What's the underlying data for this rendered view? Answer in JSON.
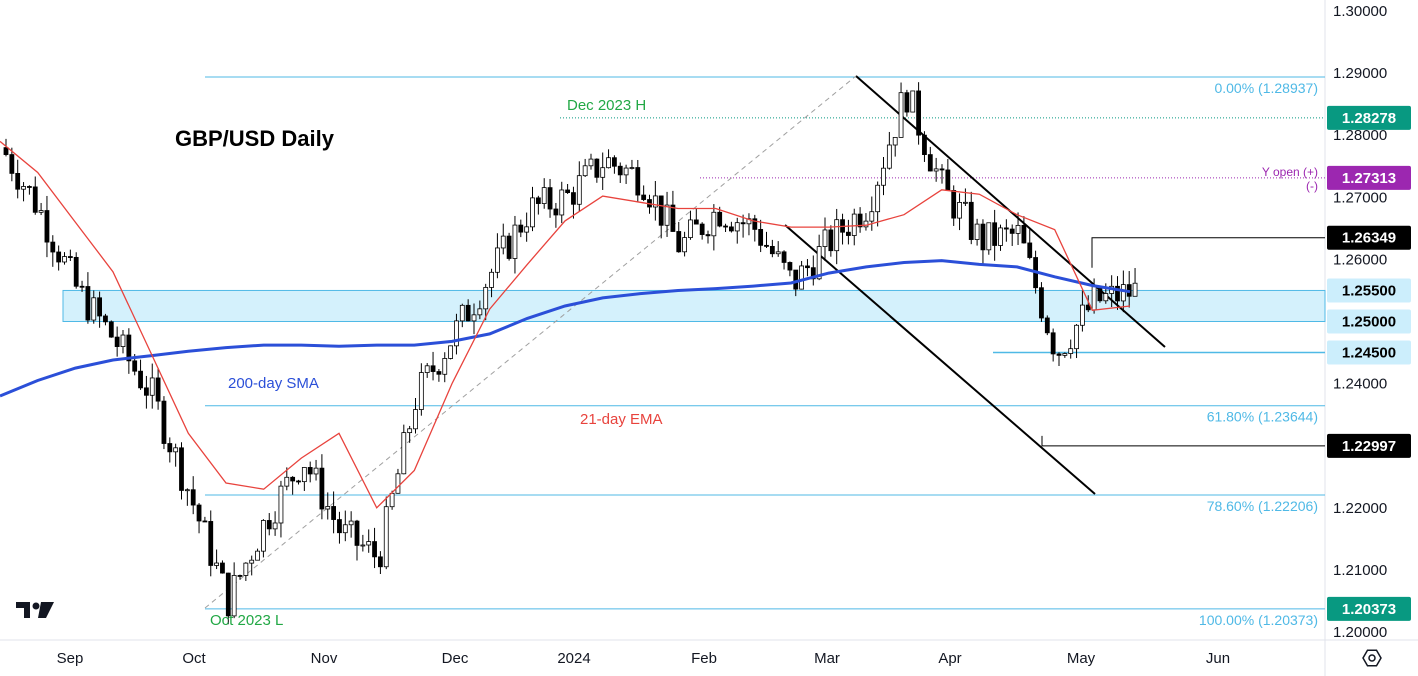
{
  "chart_data": {
    "type": "candlestick",
    "title": "GBP/USD Daily",
    "ylim": [
      1.2,
      1.3
    ],
    "y_ticks": [
      "1.30000",
      "1.29000",
      "1.28000",
      "1.27000",
      "1.26000",
      "1.24000",
      "1.22000",
      "1.21000",
      "1.20000"
    ],
    "x_ticks": [
      "Sep",
      "Oct",
      "Nov",
      "Dec",
      "2024",
      "Feb",
      "Mar",
      "Apr",
      "May",
      "Jun"
    ],
    "price_tags": [
      {
        "label": "1.28278",
        "value": 1.28278,
        "bg": "#089981",
        "fg": "#ffffff"
      },
      {
        "label": "1.27313",
        "value": 1.27313,
        "bg": "#9c27b0",
        "fg": "#ffffff"
      },
      {
        "label": "1.26349",
        "value": 1.26349,
        "bg": "#000000",
        "fg": "#ffffff"
      },
      {
        "label": "1.25500",
        "value": 1.255,
        "bg": "#cceefc",
        "fg": "#000000"
      },
      {
        "label": "1.25000",
        "value": 1.25,
        "bg": "#cceefc",
        "fg": "#000000"
      },
      {
        "label": "1.24500",
        "value": 1.245,
        "bg": "#cceefc",
        "fg": "#000000"
      },
      {
        "label": "1.22997",
        "value": 1.22997,
        "bg": "#000000",
        "fg": "#ffffff"
      },
      {
        "label": "1.20373",
        "value": 1.20373,
        "bg": "#089981",
        "fg": "#ffffff"
      }
    ],
    "fib_levels": [
      {
        "label": "0.00% (1.28937)",
        "value": 1.28937
      },
      {
        "label": "61.80% (1.23644)",
        "value": 1.23644
      },
      {
        "label": "78.60% (1.22206)",
        "value": 1.22206
      },
      {
        "label": "100.00% (1.20373)",
        "value": 1.20373
      }
    ],
    "zone": {
      "low": 1.25,
      "high": 1.255
    },
    "annotations": {
      "sma_label": "200-day SMA",
      "ema_label": "21-day EMA",
      "high_label": "Dec 2023 H",
      "low_label": "Oct 2023 L",
      "yopen_plus": "Y open (+)",
      "yopen_minus": "(-)"
    },
    "series_sma": [
      1.238,
      1.2405,
      1.2425,
      1.2438,
      1.2445,
      1.2452,
      1.2458,
      1.2462,
      1.2462,
      1.246,
      1.2462,
      1.2462,
      1.2468,
      1.248,
      1.2505,
      1.2525,
      1.2538,
      1.2545,
      1.255,
      1.2553,
      1.2557,
      1.2562,
      1.2578,
      1.2588,
      1.2595,
      1.2598,
      1.2592,
      1.2588,
      1.2572,
      1.2558,
      1.2548
    ],
    "series_ema": [
      1.279,
      1.274,
      1.266,
      1.258,
      1.245,
      1.232,
      1.224,
      1.223,
      1.228,
      1.232,
      1.22,
      1.226,
      1.24,
      1.252,
      1.2592,
      1.2662,
      1.2702,
      1.2692,
      1.2682,
      1.2682,
      1.2662,
      1.2652,
      1.2652,
      1.2655,
      1.2672,
      1.2712,
      1.2705,
      1.2672,
      1.2648,
      1.2518,
      1.2525
    ],
    "series_price": [
      1.278,
      1.268,
      1.255,
      1.247,
      1.238,
      1.222,
      1.205,
      1.218,
      1.228,
      1.216,
      1.212,
      1.238,
      1.248,
      1.258,
      1.268,
      1.27,
      1.276,
      1.273,
      1.262,
      1.268,
      1.265,
      1.256,
      1.263,
      1.269,
      1.287,
      1.271,
      1.263,
      1.264,
      1.245,
      1.2532,
      1.2548
    ]
  }
}
